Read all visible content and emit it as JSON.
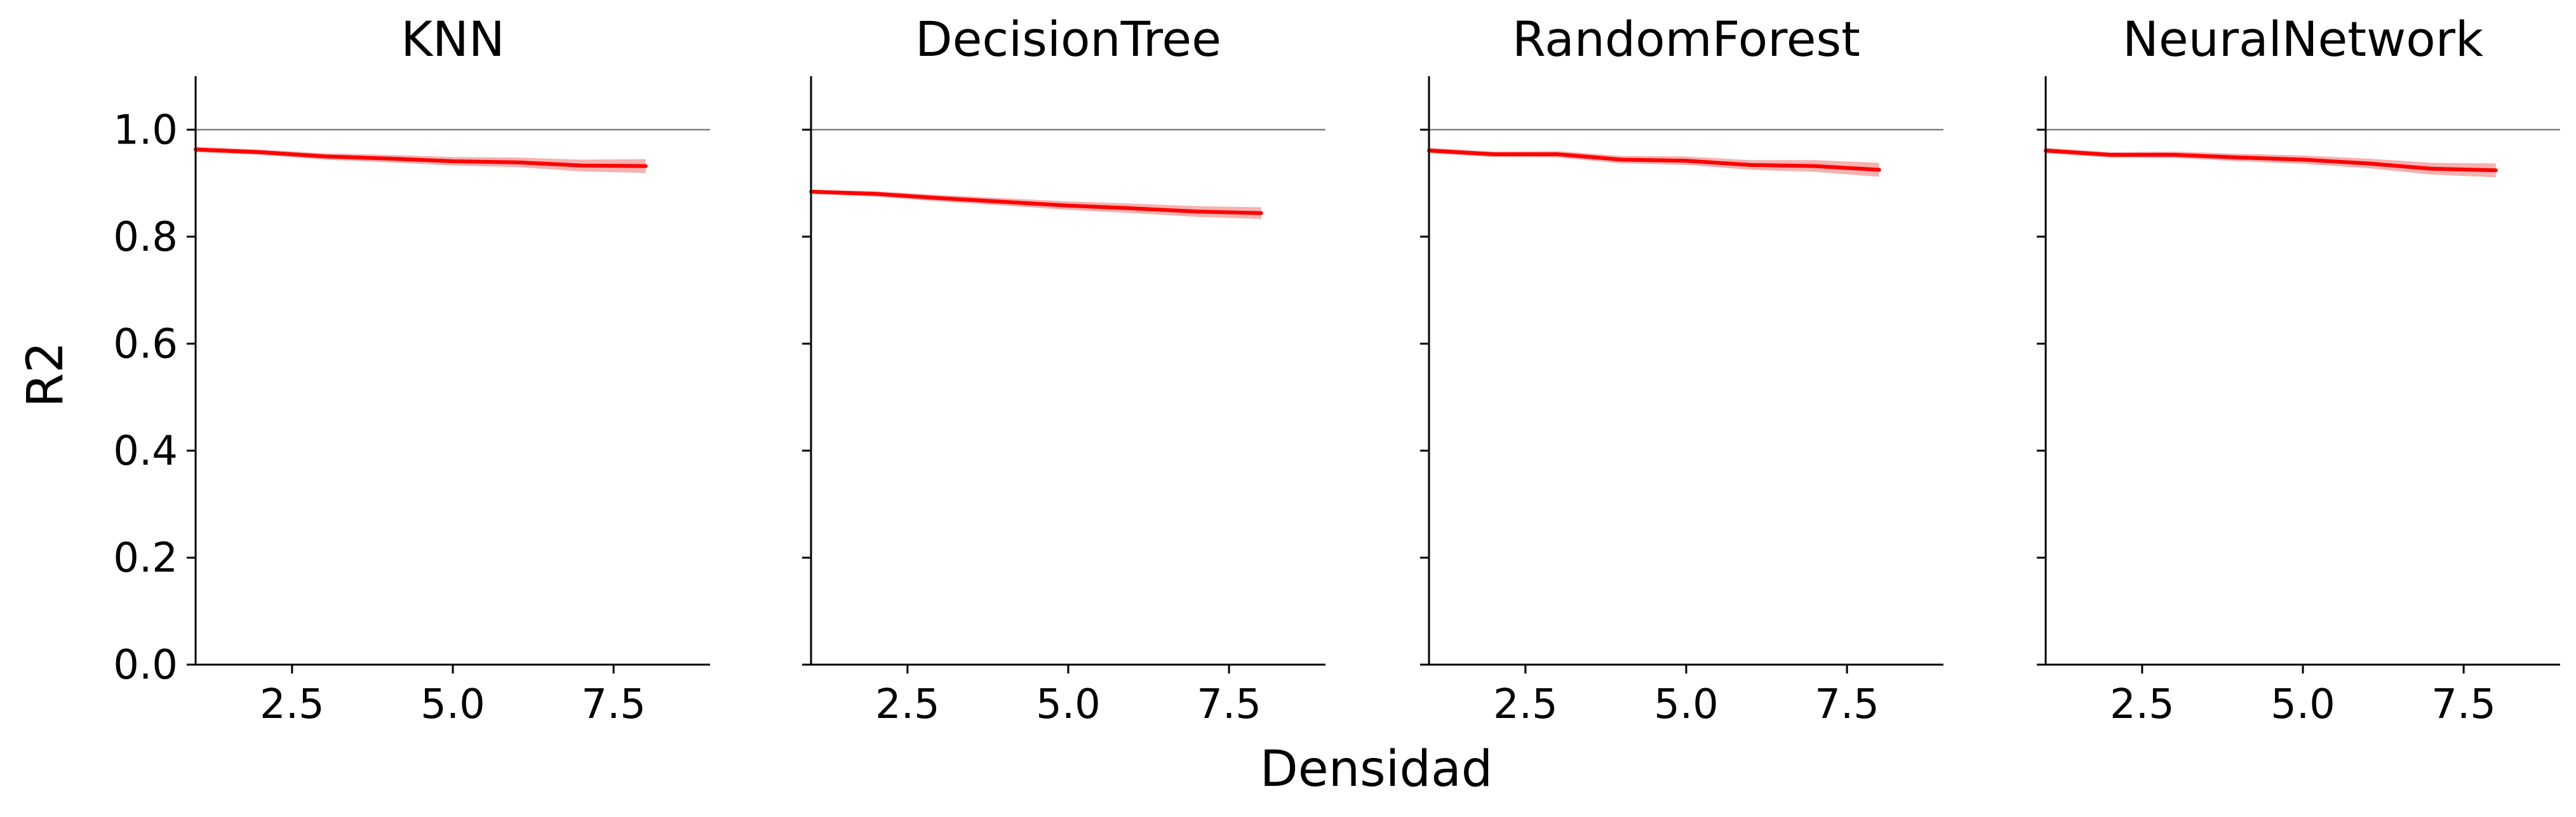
{
  "figure": {
    "xlabel": "Densidad",
    "ylabel": "R2"
  },
  "chart_data": [
    {
      "type": "line",
      "title": "KNN",
      "x": [
        1,
        2,
        3,
        4,
        5,
        6,
        7,
        8
      ],
      "series": [
        {
          "values": [
            0.963,
            0.958,
            0.95,
            0.946,
            0.941,
            0.939,
            0.933,
            0.932
          ],
          "ci_low": [
            0.958,
            0.953,
            0.944,
            0.939,
            0.933,
            0.93,
            0.922,
            0.919
          ],
          "ci_high": [
            0.968,
            0.963,
            0.956,
            0.953,
            0.949,
            0.948,
            0.944,
            0.945
          ]
        }
      ],
      "xlim": [
        1,
        9
      ],
      "ylim": [
        0,
        1.1
      ],
      "xticks": [
        "2.5",
        "5.0",
        "7.5"
      ],
      "yticks": [
        "0.0",
        "0.2",
        "0.4",
        "0.6",
        "0.8",
        "1.0"
      ],
      "reference_line": 1.0,
      "colors": {
        "line": "#ff0000",
        "band": "#f4a3a3",
        "reference": "#808080"
      }
    },
    {
      "type": "line",
      "title": "DecisionTree",
      "x": [
        1,
        2,
        3,
        4,
        5,
        6,
        7,
        8
      ],
      "series": [
        {
          "values": [
            0.884,
            0.88,
            0.872,
            0.865,
            0.858,
            0.853,
            0.847,
            0.844
          ],
          "ci_low": [
            0.88,
            0.875,
            0.866,
            0.858,
            0.85,
            0.844,
            0.837,
            0.833
          ],
          "ci_high": [
            0.888,
            0.885,
            0.878,
            0.872,
            0.866,
            0.862,
            0.857,
            0.855
          ]
        }
      ],
      "xlim": [
        1,
        9
      ],
      "ylim": [
        0,
        1.1
      ],
      "xticks": [
        "2.5",
        "5.0",
        "7.5"
      ],
      "yticks": [
        "0.0",
        "0.2",
        "0.4",
        "0.6",
        "0.8",
        "1.0"
      ],
      "reference_line": 1.0,
      "colors": {
        "line": "#ff0000",
        "band": "#f4a3a3",
        "reference": "#808080"
      }
    },
    {
      "type": "line",
      "title": "RandomForest",
      "x": [
        1,
        2,
        3,
        4,
        5,
        6,
        7,
        8
      ],
      "series": [
        {
          "values": [
            0.961,
            0.954,
            0.954,
            0.944,
            0.942,
            0.934,
            0.932,
            0.925
          ],
          "ci_low": [
            0.956,
            0.949,
            0.948,
            0.937,
            0.934,
            0.925,
            0.921,
            0.912
          ],
          "ci_high": [
            0.966,
            0.959,
            0.96,
            0.951,
            0.95,
            0.943,
            0.943,
            0.938
          ]
        }
      ],
      "xlim": [
        1,
        9
      ],
      "ylim": [
        0,
        1.1
      ],
      "xticks": [
        "2.5",
        "5.0",
        "7.5"
      ],
      "yticks": [
        "0.0",
        "0.2",
        "0.4",
        "0.6",
        "0.8",
        "1.0"
      ],
      "reference_line": 1.0,
      "colors": {
        "line": "#ff0000",
        "band": "#f4a3a3",
        "reference": "#808080"
      }
    },
    {
      "type": "line",
      "title": "NeuralNetwork",
      "x": [
        1,
        2,
        3,
        4,
        5,
        6,
        7,
        8
      ],
      "series": [
        {
          "values": [
            0.961,
            0.953,
            0.953,
            0.948,
            0.944,
            0.937,
            0.927,
            0.924
          ],
          "ci_low": [
            0.956,
            0.948,
            0.947,
            0.941,
            0.936,
            0.928,
            0.916,
            0.911
          ],
          "ci_high": [
            0.966,
            0.958,
            0.959,
            0.955,
            0.952,
            0.946,
            0.938,
            0.937
          ]
        }
      ],
      "xlim": [
        1,
        9
      ],
      "ylim": [
        0,
        1.1
      ],
      "xticks": [
        "2.5",
        "5.0",
        "7.5"
      ],
      "yticks": [
        "0.0",
        "0.2",
        "0.4",
        "0.6",
        "0.8",
        "1.0"
      ],
      "reference_line": 1.0,
      "colors": {
        "line": "#ff0000",
        "band": "#f4a3a3",
        "reference": "#808080"
      }
    }
  ]
}
